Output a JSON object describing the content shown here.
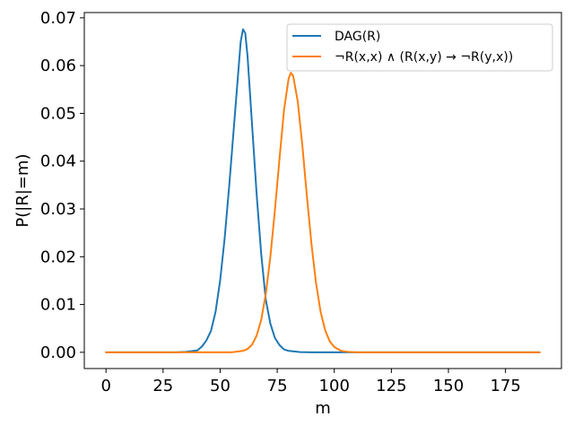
{
  "chart_data": {
    "type": "line",
    "xlabel": "m",
    "ylabel": "P(|R|=m)",
    "xlim": [
      -9.5,
      199.5
    ],
    "ylim": [
      -0.0034,
      0.0711
    ],
    "xticks": [
      0,
      25,
      50,
      75,
      100,
      125,
      150,
      175
    ],
    "xtick_labels": [
      "0",
      "25",
      "50",
      "75",
      "100",
      "125",
      "150",
      "175"
    ],
    "yticks": [
      0.0,
      0.01,
      0.02,
      0.03,
      0.04,
      0.05,
      0.06,
      0.07
    ],
    "ytick_labels": [
      "0.00",
      "0.01",
      "0.02",
      "0.03",
      "0.04",
      "0.05",
      "0.06",
      "0.07"
    ],
    "grid": false,
    "legend_position": "top-right",
    "series": [
      {
        "name": "DAG(R)",
        "color": "#1f77b4",
        "points": [
          [
            0,
            0
          ],
          [
            30,
            0
          ],
          [
            35,
            0.0001
          ],
          [
            40,
            0.0004
          ],
          [
            42,
            0.0012
          ],
          [
            44,
            0.0025
          ],
          [
            46,
            0.0045
          ],
          [
            48,
            0.0085
          ],
          [
            50,
            0.015
          ],
          [
            52,
            0.024
          ],
          [
            54,
            0.035
          ],
          [
            56,
            0.047
          ],
          [
            58,
            0.059
          ],
          [
            59,
            0.065
          ],
          [
            60,
            0.0676
          ],
          [
            61,
            0.0668
          ],
          [
            62,
            0.062
          ],
          [
            64,
            0.0475
          ],
          [
            66,
            0.033
          ],
          [
            68,
            0.0205
          ],
          [
            70,
            0.011
          ],
          [
            72,
            0.006
          ],
          [
            74,
            0.003
          ],
          [
            76,
            0.0015
          ],
          [
            78,
            0.0006
          ],
          [
            80,
            0.0003
          ],
          [
            85,
            5e-05
          ],
          [
            90,
            0
          ],
          [
            190,
            0
          ]
        ]
      },
      {
        "name": "¬R(x,x) ∧ (R(x,y) → ¬R(y,x))",
        "color": "#ff7f0e",
        "points": [
          [
            0,
            0
          ],
          [
            55,
            0
          ],
          [
            60,
            0.0003
          ],
          [
            62,
            0.0007
          ],
          [
            64,
            0.0016
          ],
          [
            66,
            0.0035
          ],
          [
            68,
            0.0068
          ],
          [
            70,
            0.0122
          ],
          [
            72,
            0.02
          ],
          [
            74,
            0.0298
          ],
          [
            76,
            0.0405
          ],
          [
            78,
            0.0508
          ],
          [
            80,
            0.0573
          ],
          [
            81,
            0.0585
          ],
          [
            82,
            0.0578
          ],
          [
            84,
            0.0525
          ],
          [
            86,
            0.0433
          ],
          [
            88,
            0.0327
          ],
          [
            90,
            0.0227
          ],
          [
            92,
            0.0145
          ],
          [
            94,
            0.0085
          ],
          [
            96,
            0.0046
          ],
          [
            98,
            0.0023
          ],
          [
            100,
            0.0011
          ],
          [
            103,
            0.0003
          ],
          [
            106,
            0.0001
          ],
          [
            110,
            0
          ],
          [
            190,
            0
          ]
        ]
      }
    ]
  }
}
